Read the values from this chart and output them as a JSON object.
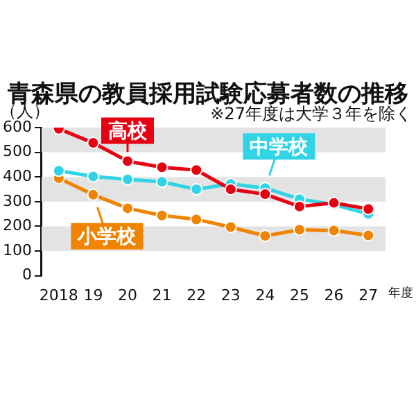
{
  "chart_data": {
    "type": "line",
    "title": "青森県の教員採用試験応募者数の推移",
    "subtitle": "※27年度は大学３年を除く",
    "ylabel": "（人）",
    "xlabel": "年度",
    "categories": [
      "2018",
      "19",
      "20",
      "21",
      "22",
      "23",
      "24",
      "25",
      "26",
      "27"
    ],
    "series": [
      {
        "name": "高校",
        "color": "#e60012",
        "values": [
          595,
          538,
          464,
          439,
          428,
          350,
          330,
          280,
          295,
          270
        ]
      },
      {
        "name": "中学校",
        "color": "#33d3e6",
        "values": [
          425,
          402,
          390,
          380,
          350,
          372,
          355,
          310,
          288,
          250
        ]
      },
      {
        "name": "小学校",
        "color": "#f08300",
        "values": [
          395,
          328,
          273,
          244,
          228,
          197,
          161,
          186,
          183,
          163
        ]
      }
    ],
    "ylim": [
      0,
      600
    ],
    "yticks": [
      0,
      100,
      200,
      300,
      400,
      500,
      600
    ],
    "bands": [
      {
        "axis": "y",
        "from": 100,
        "to": 200,
        "color": "#e3e3e3"
      },
      {
        "axis": "y",
        "from": 300,
        "to": 400,
        "color": "#e3e3e3"
      },
      {
        "axis": "y",
        "from": 500,
        "to": 600,
        "color": "#e3e3e3"
      }
    ],
    "legend": false,
    "marker": "circle",
    "line_style": "solid"
  }
}
